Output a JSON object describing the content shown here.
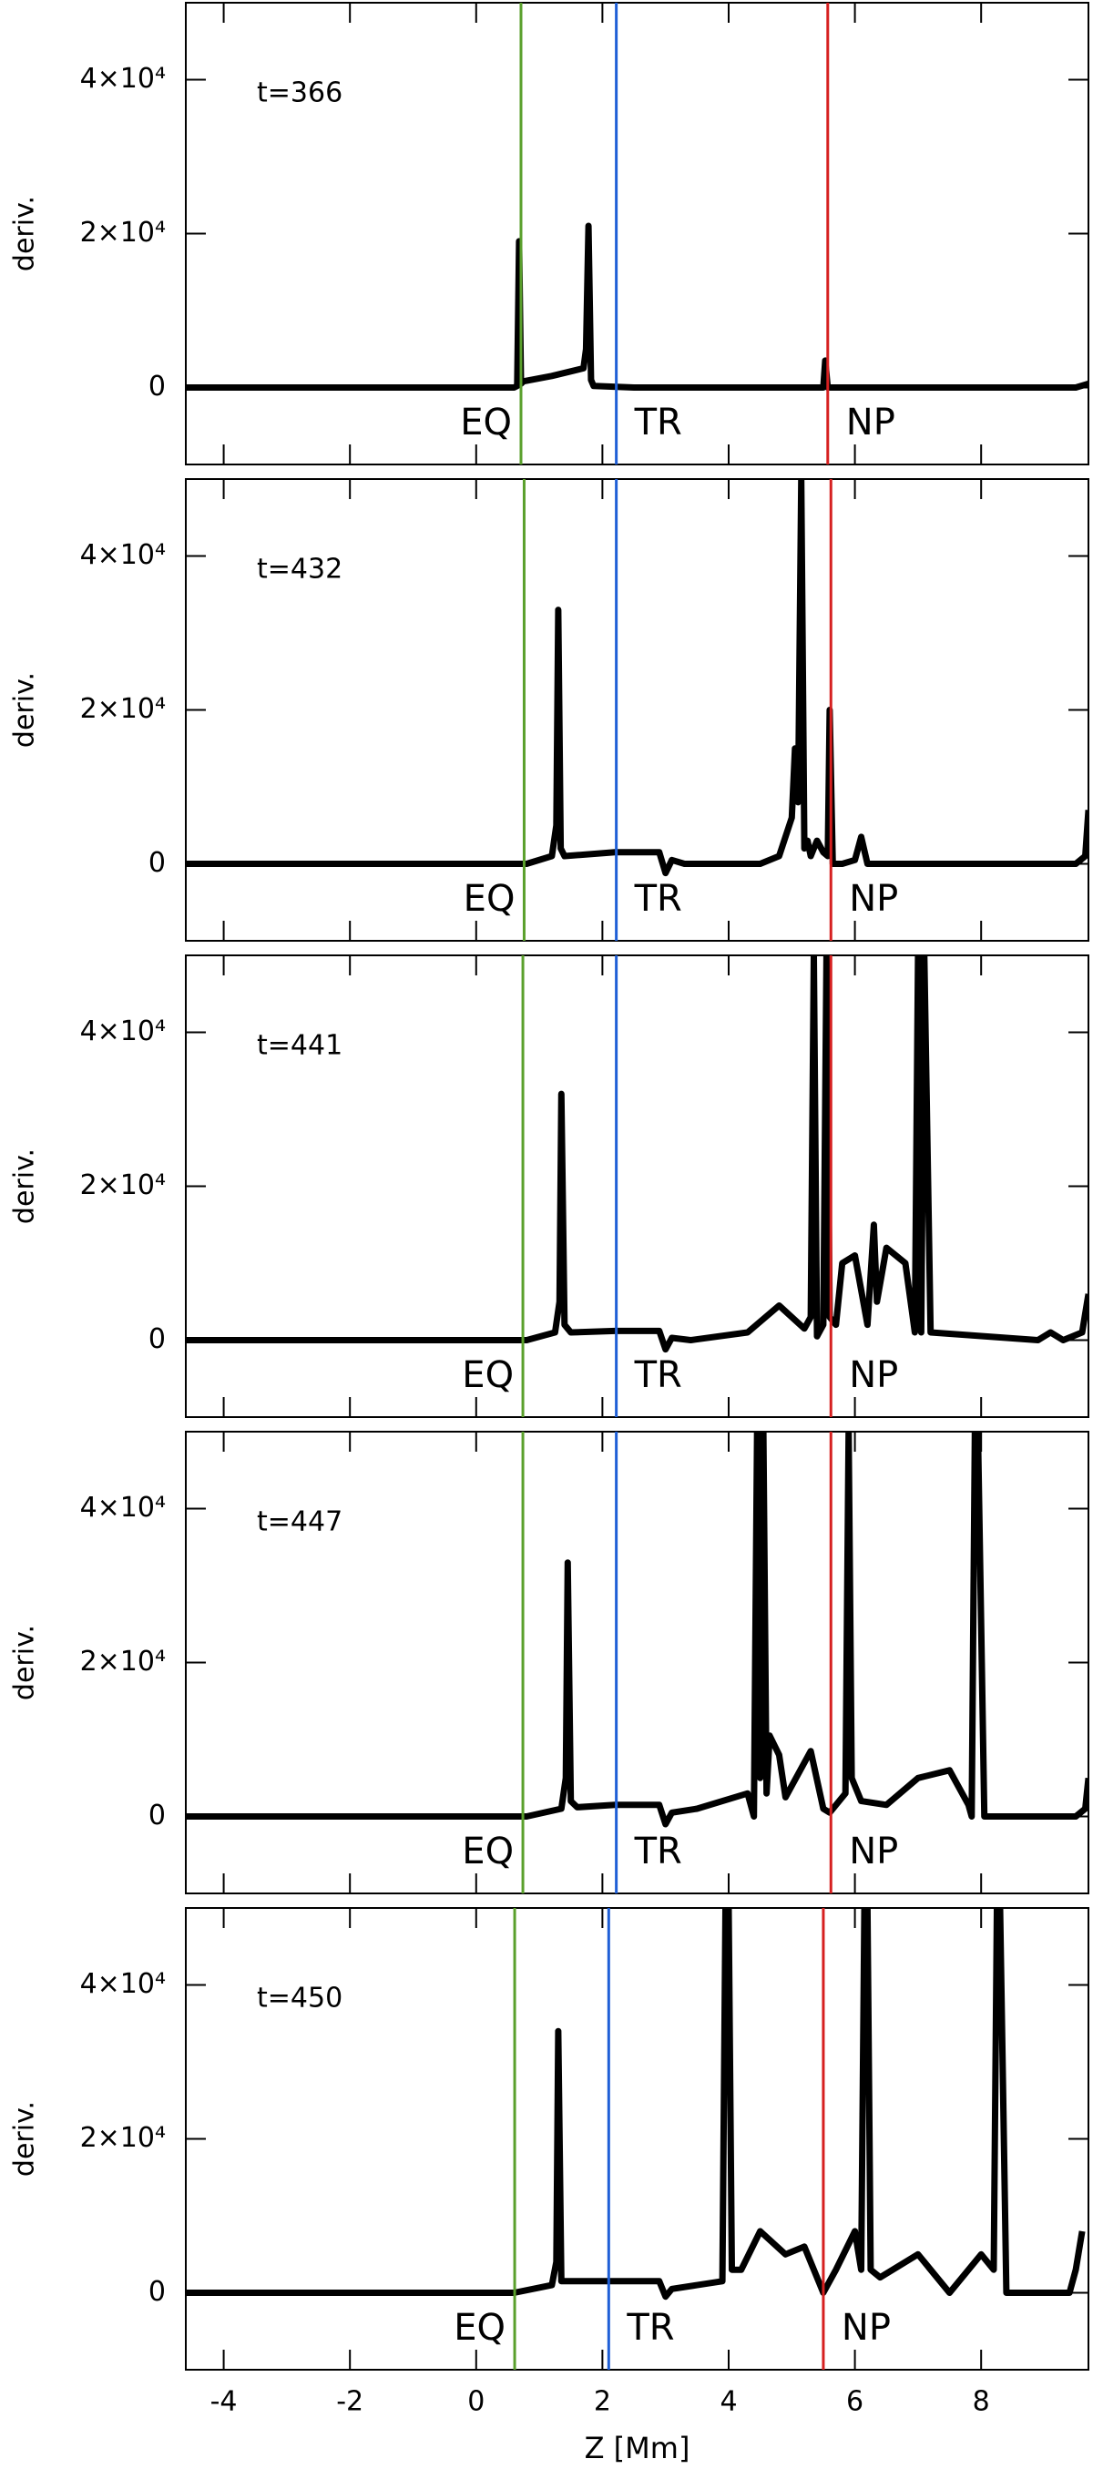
{
  "chart_data": [
    {
      "type": "line",
      "annotation": "t=366",
      "ylabel": "deriv.",
      "xlim": [
        -4.6,
        9.7
      ],
      "ylim": [
        -10000,
        50000
      ],
      "yticks": [
        0,
        {
          "value": 20000,
          "label": "2×10⁴"
        },
        {
          "value": 40000,
          "label": "4×10⁴"
        }
      ],
      "color": "#000000",
      "x": [
        -4.6,
        0.6,
        0.65,
        0.68,
        0.71,
        0.75,
        1.2,
        1.7,
        1.74,
        1.78,
        1.82,
        1.86,
        2.5,
        5.45,
        5.5,
        5.53,
        5.57,
        6,
        9.5,
        9.7
      ],
      "values": [
        0,
        0,
        200,
        19000,
        500,
        800,
        1500,
        2500,
        5000,
        21000,
        1000,
        200,
        0,
        0,
        0,
        3500,
        0,
        0,
        0,
        500
      ],
      "vlines": [
        {
          "x": 0.71,
          "color": "#5aa02c",
          "label": "EQ"
        },
        {
          "x": 2.22,
          "color": "#1f5fd6",
          "label": "TR"
        },
        {
          "x": 5.57,
          "color": "#d62020",
          "label": "NP"
        }
      ]
    },
    {
      "type": "line",
      "annotation": "t=432",
      "ylabel": "deriv.",
      "xlim": [
        -4.6,
        9.7
      ],
      "ylim": [
        -10000,
        50000
      ],
      "yticks": [
        0,
        {
          "value": 20000,
          "label": "2×10⁴"
        },
        {
          "value": 40000,
          "label": "4×10⁴"
        }
      ],
      "color": "#000000",
      "x": [
        -4.6,
        0.8,
        1.2,
        1.27,
        1.3,
        1.34,
        1.4,
        2.2,
        2.9,
        3.0,
        3.1,
        3.3,
        4.5,
        4.8,
        5.0,
        5.05,
        5.1,
        5.15,
        5.2,
        5.25,
        5.3,
        5.4,
        5.5,
        5.57,
        5.6,
        5.65,
        5.8,
        6.0,
        6.1,
        6.2,
        6.4,
        9.5,
        9.65,
        9.7
      ],
      "values": [
        0,
        0,
        1000,
        5000,
        33000,
        2000,
        1000,
        1500,
        1500,
        -1200,
        500,
        0,
        0,
        1000,
        6000,
        15000,
        8000,
        50000,
        2000,
        3000,
        1000,
        3000,
        1500,
        1000,
        20000,
        0,
        0,
        500,
        3500,
        0,
        0,
        0,
        1000,
        7000
      ],
      "vlines": [
        {
          "x": 0.76,
          "color": "#5aa02c",
          "label": "EQ"
        },
        {
          "x": 2.22,
          "color": "#1f5fd6",
          "label": "TR"
        },
        {
          "x": 5.62,
          "color": "#d62020",
          "label": "NP"
        }
      ]
    },
    {
      "type": "line",
      "annotation": "t=441",
      "ylabel": "deriv.",
      "xlim": [
        -4.6,
        9.7
      ],
      "ylim": [
        -10000,
        50000
      ],
      "yticks": [
        0,
        {
          "value": 20000,
          "label": "2×10⁴"
        },
        {
          "value": 40000,
          "label": "4×10⁴"
        }
      ],
      "color": "#000000",
      "x": [
        -4.6,
        0.8,
        1.25,
        1.32,
        1.35,
        1.4,
        1.5,
        2.2,
        2.9,
        3.0,
        3.1,
        3.4,
        4.3,
        4.8,
        5.2,
        5.3,
        5.35,
        5.4,
        5.5,
        5.55,
        5.6,
        5.7,
        5.8,
        6.0,
        6.2,
        6.3,
        6.35,
        6.5,
        6.8,
        6.95,
        7.0,
        7.05,
        7.1,
        7.2,
        8.9,
        9.1,
        9.3,
        9.6,
        9.7
      ],
      "values": [
        0,
        0,
        1000,
        5000,
        32000,
        2000,
        1000,
        1200,
        1200,
        -1200,
        300,
        0,
        1000,
        4500,
        1500,
        3000,
        50000,
        500,
        2000,
        50000,
        3000,
        2000,
        10000,
        11000,
        2000,
        15000,
        5000,
        12000,
        10000,
        1000,
        50000,
        1000,
        50000,
        1000,
        0,
        1000,
        0,
        1000,
        6000
      ],
      "vlines": [
        {
          "x": 0.74,
          "color": "#5aa02c",
          "label": "EQ"
        },
        {
          "x": 2.22,
          "color": "#1f5fd6",
          "label": "TR"
        },
        {
          "x": 5.62,
          "color": "#d62020",
          "label": "NP"
        }
      ]
    },
    {
      "type": "line",
      "annotation": "t=447",
      "ylabel": "deriv.",
      "xlim": [
        -4.6,
        9.7
      ],
      "ylim": [
        -10000,
        50000
      ],
      "yticks": [
        0,
        {
          "value": 20000,
          "label": "2×10⁴"
        },
        {
          "value": 40000,
          "label": "4×10⁴"
        }
      ],
      "color": "#000000",
      "x": [
        -4.6,
        0.8,
        1.35,
        1.42,
        1.45,
        1.5,
        1.6,
        2.2,
        2.9,
        3.0,
        3.1,
        3.5,
        4.3,
        4.4,
        4.45,
        4.5,
        4.55,
        4.6,
        4.65,
        4.8,
        4.9,
        5.3,
        5.5,
        5.6,
        5.85,
        5.9,
        5.95,
        6.1,
        6.5,
        7.0,
        7.5,
        7.8,
        7.85,
        7.9,
        7.95,
        8.05,
        9.5,
        9.65,
        9.7
      ],
      "values": [
        0,
        0,
        1000,
        5000,
        33000,
        2000,
        1200,
        1500,
        1500,
        -1000,
        500,
        1000,
        3000,
        0,
        50000,
        5000,
        50000,
        3000,
        10500,
        8000,
        2500,
        8500,
        1000,
        500,
        3000,
        50000,
        5000,
        2000,
        1500,
        5000,
        6000,
        1500,
        0,
        50000,
        50000,
        0,
        0,
        1000,
        5000
      ],
      "vlines": [
        {
          "x": 0.74,
          "color": "#5aa02c",
          "label": "EQ"
        },
        {
          "x": 2.22,
          "color": "#1f5fd6",
          "label": "TR"
        },
        {
          "x": 5.62,
          "color": "#d62020",
          "label": "NP"
        }
      ]
    },
    {
      "type": "line",
      "annotation": "t=450",
      "ylabel": "deriv.",
      "xlabel": "Z [Mm]",
      "xlim": [
        -4.6,
        9.7
      ],
      "ylim": [
        -10000,
        50000
      ],
      "yticks": [
        0,
        {
          "value": 20000,
          "label": "2×10⁴"
        },
        {
          "value": 40000,
          "label": "4×10⁴"
        }
      ],
      "xticks": [
        -4,
        -2,
        0,
        2,
        4,
        6,
        8
      ],
      "color": "#000000",
      "x": [
        -4.6,
        0.6,
        1.2,
        1.27,
        1.3,
        1.35,
        1.5,
        2.2,
        2.9,
        3.0,
        3.1,
        3.5,
        3.9,
        3.95,
        4.0,
        4.05,
        4.2,
        4.5,
        4.9,
        5.2,
        5.5,
        5.7,
        6.0,
        6.1,
        6.15,
        6.2,
        6.25,
        6.4,
        7.0,
        7.5,
        8.0,
        8.2,
        8.25,
        8.3,
        8.4,
        9.4,
        9.5,
        9.6
      ],
      "values": [
        0,
        0,
        1000,
        4000,
        34000,
        1500,
        1500,
        1500,
        1500,
        -500,
        500,
        1000,
        1500,
        50000,
        50000,
        3000,
        3000,
        8000,
        5000,
        6000,
        0,
        3000,
        8000,
        3000,
        50000,
        50000,
        3000,
        2000,
        5000,
        0,
        5000,
        3000,
        50000,
        50000,
        0,
        0,
        3000,
        8000
      ],
      "vlines": [
        {
          "x": 0.61,
          "color": "#5aa02c",
          "label": "EQ"
        },
        {
          "x": 2.1,
          "color": "#1f5fd6",
          "label": "TR"
        },
        {
          "x": 5.5,
          "color": "#d62020",
          "label": "NP"
        }
      ]
    }
  ]
}
